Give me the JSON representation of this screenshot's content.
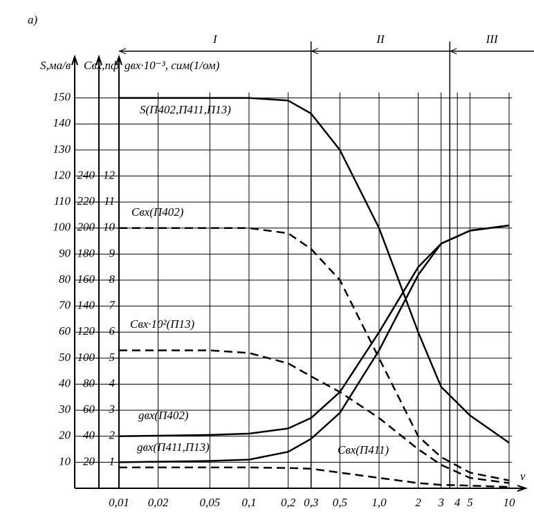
{
  "chart_data": {
    "type": "line",
    "panel_label": "а)",
    "x_label": "ν",
    "y_label": "S,ма/в",
    "y2_label": "Cвх,пф",
    "y3_label": "gвх·10⁻³, сим(1/ом)",
    "log_x": true,
    "grid": true,
    "xlim": [
      0.01,
      10
    ],
    "xticks": [
      {
        "value": 0.01,
        "label": "0,01"
      },
      {
        "value": 0.02,
        "label": "0,02"
      },
      {
        "value": 0.05,
        "label": "0,05"
      },
      {
        "value": 0.1,
        "label": "0,1"
      },
      {
        "value": 0.2,
        "label": "0,2"
      },
      {
        "value": 0.3,
        "label": "0,3"
      },
      {
        "value": 0.5,
        "label": "0,5"
      },
      {
        "value": 1.0,
        "label": "1,0"
      },
      2,
      3,
      4,
      5,
      10
    ],
    "ylim": [
      0,
      160
    ],
    "yticks": [
      10,
      20,
      30,
      40,
      50,
      60,
      70,
      80,
      90,
      100,
      110,
      120,
      130,
      140,
      150
    ],
    "y2lim": [
      0,
      320
    ],
    "y2ticks": [
      20,
      40,
      60,
      80,
      100,
      120,
      140,
      160,
      180,
      200,
      220,
      240
    ],
    "y3lim": [
      0,
      16
    ],
    "y3ticks": [
      1,
      2,
      3,
      4,
      5,
      6,
      7,
      8,
      9,
      10,
      11,
      12
    ],
    "regions": [
      {
        "label": "I",
        "from": 0.01,
        "to": 0.3
      },
      {
        "label": "II",
        "from": 0.3,
        "to": 3.5
      },
      {
        "label": "III",
        "from": 3.5,
        "to": 10
      }
    ],
    "x": [
      0.01,
      0.05,
      0.1,
      0.2,
      0.3,
      0.5,
      1,
      2,
      3,
      5,
      10
    ],
    "series": [
      {
        "name": "S(П402,П411,П13)",
        "color": "#000000",
        "dash": false,
        "values": [
          150,
          150,
          150,
          149,
          144,
          130,
          100,
          60,
          39,
          28,
          17.5
        ]
      },
      {
        "name": "Cвх(П402)",
        "color": "#000000",
        "dash": true,
        "values": [
          100,
          100,
          100,
          98,
          92,
          80,
          50,
          20,
          12,
          6,
          3
        ]
      },
      {
        "name": "Cвх·10²(П13)",
        "color": "#000000",
        "dash": true,
        "values": [
          53,
          53,
          52,
          48,
          43,
          37,
          27,
          15,
          9,
          4,
          2
        ]
      },
      {
        "name": "gвх(П402)",
        "color": "#000000",
        "dash": false,
        "values": [
          20,
          20.5,
          21,
          23,
          27,
          37,
          60,
          85,
          94,
          99,
          101
        ]
      },
      {
        "name": "gвх(П411,П13)",
        "color": "#000000",
        "dash": false,
        "values": [
          10,
          10.5,
          11,
          14,
          19,
          29,
          53,
          82,
          94,
          99,
          101
        ]
      },
      {
        "name": "Cвх(П411)",
        "color": "#000000",
        "dash": true,
        "values": [
          8,
          8,
          8,
          7.8,
          7.5,
          6,
          4,
          2,
          1.3,
          1,
          0.5
        ]
      }
    ]
  }
}
